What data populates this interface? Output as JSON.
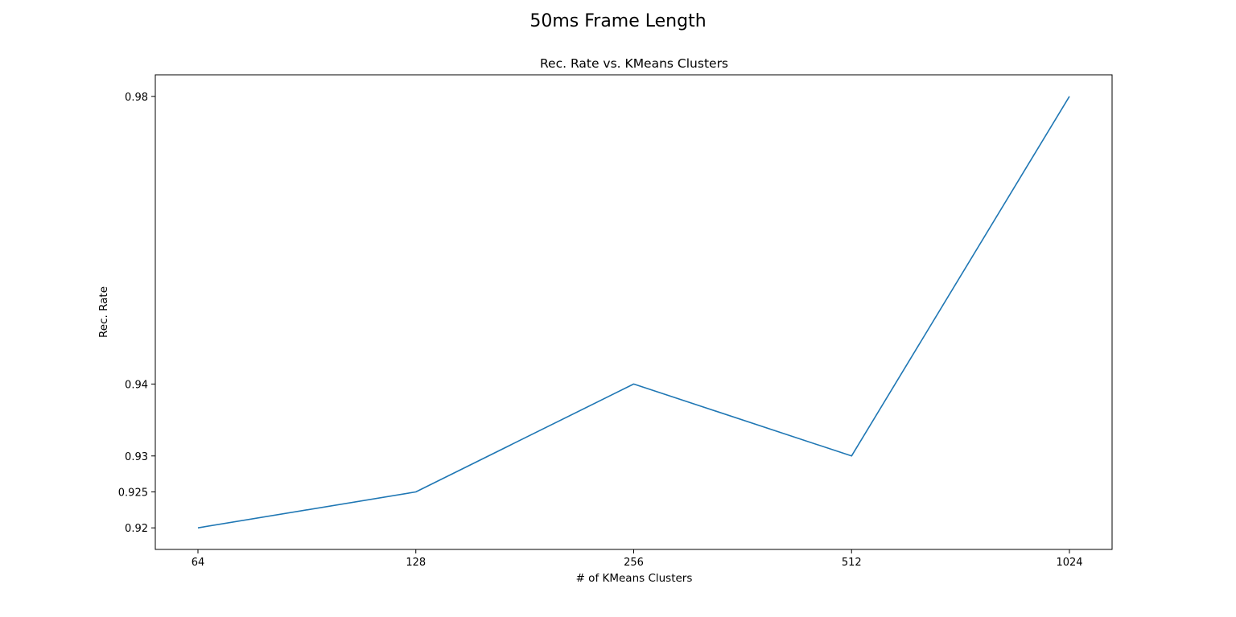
{
  "figure_title": "50ms Frame Length",
  "chart_data": {
    "type": "line",
    "title": "Rec. Rate vs. KMeans Clusters",
    "xlabel": "# of KMeans Clusters",
    "ylabel": "Rec. Rate",
    "categories": [
      "64",
      "128",
      "256",
      "512",
      "1024"
    ],
    "x": [
      64,
      128,
      256,
      512,
      1024
    ],
    "series": [
      {
        "name": "Rec. Rate",
        "values": [
          0.92,
          0.925,
          0.94,
          0.93,
          0.98
        ],
        "color": "#1f77b4"
      }
    ],
    "yticks": [
      0.92,
      0.925,
      0.93,
      0.94,
      0.98
    ],
    "ytick_labels": [
      "0.92",
      "0.925",
      "0.93",
      "0.94",
      "0.98"
    ],
    "ylim": [
      0.917,
      0.983
    ],
    "grid": false,
    "legend": false
  }
}
